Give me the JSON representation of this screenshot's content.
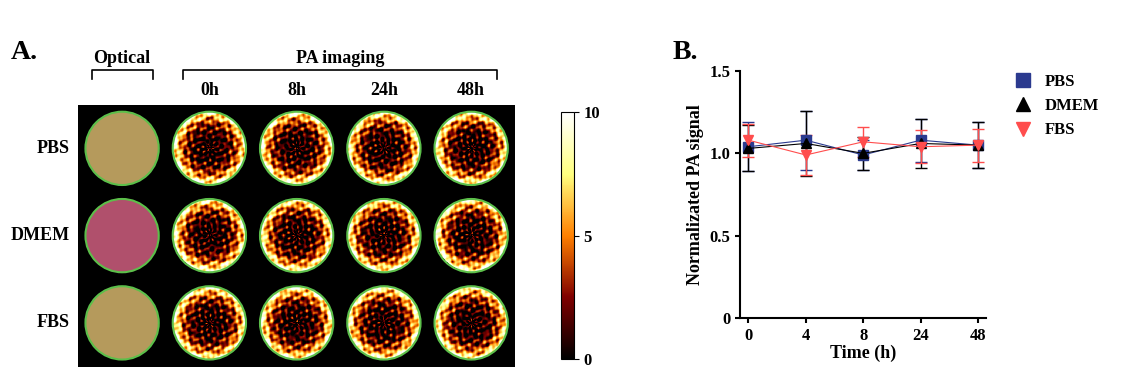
{
  "chart_data": [
    {
      "type": "image_grid",
      "panel_label": "A.",
      "optical_header": "Optical",
      "imaging_header": "PA imaging",
      "time_points": [
        "0h",
        "8h",
        "24h",
        "48h"
      ],
      "rows": [
        "PBS",
        "DMEM",
        "FBS"
      ],
      "colors": [
        "#b59a5c",
        "#b0506c",
        "#b59a5c"
      ],
      "colorbar_range": [
        0,
        10
      ],
      "colorbar_ticks": [
        0,
        5,
        10
      ]
    },
    {
      "type": "line",
      "panel_label": "B.",
      "x_label": "Time (h)",
      "y_label": "Normalizated PA signal",
      "categories": [
        "0",
        "4",
        "8",
        "24",
        "48"
      ],
      "ylim": [
        0,
        1.5
      ],
      "yticks": [
        0,
        0.5,
        1.0,
        1.5
      ],
      "legend": "upper left",
      "series": [
        {
          "name": "PBS",
          "color": "#2b3a8f",
          "marker": "square",
          "values": [
            1.04,
            1.08,
            0.99,
            1.08,
            1.05
          ],
          "errors": [
            0.15,
            0.18,
            0.09,
            0.13,
            0.14
          ]
        },
        {
          "name": "DMEM",
          "color": "#000000",
          "marker": "triangle_up",
          "values": [
            1.03,
            1.06,
            1.0,
            1.06,
            1.05
          ],
          "errors": [
            0.14,
            0.2,
            0.1,
            0.15,
            0.14
          ]
        },
        {
          "name": "FBS",
          "color": "#ff4d4d",
          "marker": "triangle_down",
          "values": [
            1.08,
            0.99,
            1.07,
            1.04,
            1.05
          ],
          "errors": [
            0.1,
            0.12,
            0.09,
            0.1,
            0.1
          ]
        }
      ]
    }
  ]
}
